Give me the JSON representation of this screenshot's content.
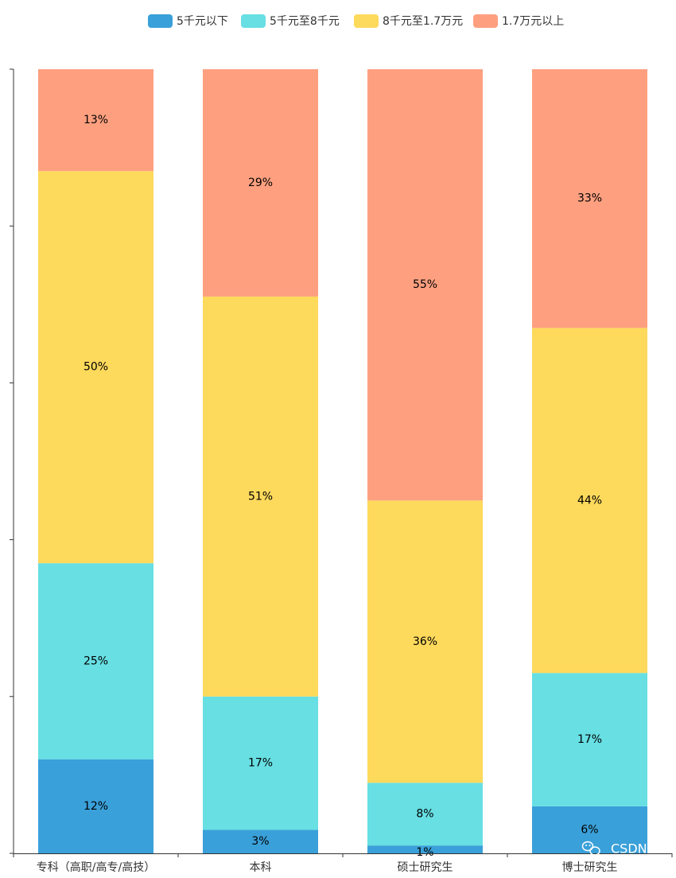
{
  "chart_data": {
    "type": "bar",
    "stacked": true,
    "normalized": true,
    "categories": [
      "专科（高职/高专/高技）",
      "本科",
      "硕士研究生",
      "博士研究生"
    ],
    "series": [
      {
        "name": "5千元以下",
        "color": "#3aa0d9",
        "values": [
          12,
          3,
          1,
          6
        ],
        "labels": [
          "12%",
          "3%",
          "1%",
          "6%"
        ]
      },
      {
        "name": "5千元至8千元",
        "color": "#67dfe3",
        "values": [
          25,
          17,
          8,
          17
        ],
        "labels": [
          "25%",
          "17%",
          "8%",
          "17%"
        ]
      },
      {
        "name": "8千元至1.7万元",
        "color": "#fdd95c",
        "values": [
          50,
          51,
          36,
          44
        ],
        "labels": [
          "50%",
          "51%",
          "36%",
          "44%"
        ]
      },
      {
        "name": "1.7万元以上",
        "color": "#fea080",
        "values": [
          13,
          29,
          55,
          33
        ],
        "labels": [
          "13%",
          "29%",
          "55%",
          "33%"
        ]
      }
    ],
    "ylim": [
      0,
      100
    ],
    "ytick_count": 5,
    "legend_position": "top-center",
    "title": "",
    "xlabel": "",
    "ylabel": ""
  },
  "watermark": {
    "text": "CSDN",
    "icon": "wechat-icon"
  }
}
